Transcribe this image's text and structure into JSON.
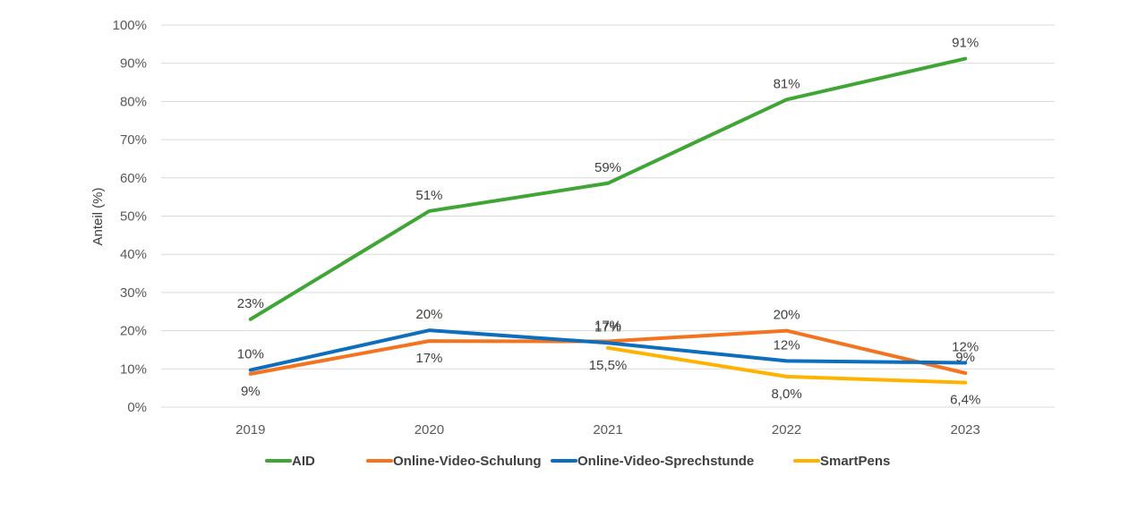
{
  "chart_data": {
    "type": "line",
    "title": "",
    "xlabel": "",
    "ylabel": "Anteil (%)",
    "ylim": [
      0,
      100
    ],
    "y_ticks": [
      0,
      10,
      20,
      30,
      40,
      50,
      60,
      70,
      80,
      90,
      100
    ],
    "y_tick_labels": [
      "0%",
      "10%",
      "20%",
      "30%",
      "40%",
      "50%",
      "60%",
      "70%",
      "80%",
      "90%",
      "100%"
    ],
    "grid": true,
    "legend_position": "bottom",
    "categories": [
      "2019",
      "2020",
      "2021",
      "2022",
      "2023"
    ],
    "series": [
      {
        "name": "AID",
        "color": "#3fa535",
        "values": [
          23,
          51.3,
          58.6,
          80.5,
          91.2
        ],
        "labels": [
          "23%",
          "51%",
          "59%",
          "81%",
          "91%"
        ],
        "label_pos": [
          "above",
          "above",
          "above",
          "above",
          "above"
        ]
      },
      {
        "name": "Online-Video-Schulung",
        "color": "#f4731f",
        "values": [
          8.7,
          17.3,
          17.2,
          20.0,
          8.9
        ],
        "labels": [
          "9%",
          "17%",
          "17%",
          "20%",
          "9%"
        ],
        "label_pos": [
          "below",
          "below",
          "above",
          "above",
          "above"
        ]
      },
      {
        "name": "Online-Video-Sprechstunde",
        "color": "#0c6ebd",
        "values": [
          9.7,
          20.1,
          16.8,
          12.1,
          11.6
        ],
        "labels": [
          "10%",
          "20%",
          "17%",
          "12%",
          "12%"
        ],
        "label_pos": [
          "above",
          "above",
          "above",
          "above",
          "above"
        ]
      },
      {
        "name": "SmartPens",
        "color": "#ffb300",
        "values": [
          null,
          null,
          15.5,
          8.0,
          6.4
        ],
        "labels": [
          null,
          null,
          "15,5%",
          "8,0%",
          "6,4%"
        ],
        "label_pos": [
          null,
          null,
          "below",
          "below",
          "below"
        ]
      }
    ]
  }
}
